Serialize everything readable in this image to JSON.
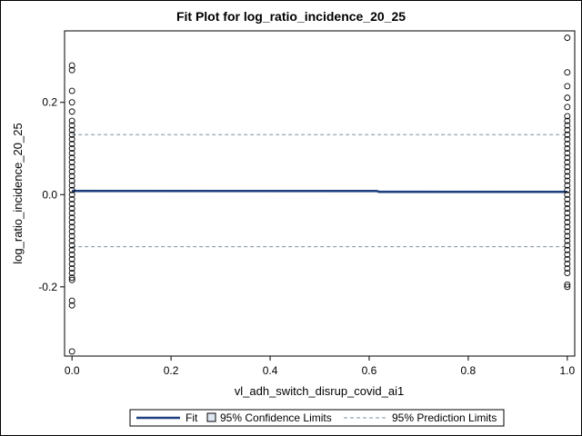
{
  "chart_data": {
    "type": "scatter",
    "title": "Fit Plot for log_ratio_incidence_20_25",
    "xlabel": "vl_adh_switch_disrup_covid_ai1",
    "ylabel": "log_ratio_incidence_20_25",
    "xlim": [
      -0.015,
      1.015
    ],
    "ylim": [
      -0.35,
      0.355
    ],
    "x_ticks": [
      0.0,
      0.2,
      0.4,
      0.6,
      0.8,
      1.0
    ],
    "x_tick_labels": [
      "0.0",
      "0.2",
      "0.4",
      "0.6",
      "0.8",
      "1.0"
    ],
    "y_ticks": [
      -0.2,
      0.0,
      0.2
    ],
    "y_tick_labels": [
      "-0.2",
      "0.0",
      "0.2"
    ],
    "grid": false,
    "legend_position": "bottom",
    "series": [
      {
        "name": "Fit",
        "kind": "line",
        "color": "#1f3f7f",
        "x": [
          0.0,
          0.615,
          0.62,
          1.0
        ],
        "y": [
          0.008,
          0.008,
          0.006,
          0.006
        ]
      },
      {
        "name": "95% Confidence Limits",
        "kind": "band",
        "color": "#b8c8e0",
        "x": [
          0.0,
          1.0
        ],
        "lower": [
          0.005,
          0.004
        ],
        "upper": [
          0.011,
          0.009
        ]
      },
      {
        "name": "95% Prediction Limits",
        "kind": "dashed",
        "color": "#7f8f9f",
        "x": [
          0.0,
          1.0
        ],
        "lower": [
          -0.113,
          -0.113
        ],
        "upper": [
          0.13,
          0.13
        ]
      }
    ],
    "scatter_points": [
      {
        "x": 0,
        "y": -0.34
      },
      {
        "x": 0,
        "y": -0.24
      },
      {
        "x": 0,
        "y": -0.23
      },
      {
        "x": 0,
        "y": -0.185
      },
      {
        "x": 0,
        "y": -0.18
      },
      {
        "x": 0,
        "y": -0.17
      },
      {
        "x": 0,
        "y": -0.16
      },
      {
        "x": 0,
        "y": -0.15
      },
      {
        "x": 0,
        "y": -0.14
      },
      {
        "x": 0,
        "y": -0.13
      },
      {
        "x": 0,
        "y": -0.12
      },
      {
        "x": 0,
        "y": -0.11
      },
      {
        "x": 0,
        "y": -0.1
      },
      {
        "x": 0,
        "y": -0.09
      },
      {
        "x": 0,
        "y": -0.08
      },
      {
        "x": 0,
        "y": -0.07
      },
      {
        "x": 0,
        "y": -0.06
      },
      {
        "x": 0,
        "y": -0.05
      },
      {
        "x": 0,
        "y": -0.04
      },
      {
        "x": 0,
        "y": -0.03
      },
      {
        "x": 0,
        "y": -0.02
      },
      {
        "x": 0,
        "y": -0.01
      },
      {
        "x": 0,
        "y": 0.0
      },
      {
        "x": 0,
        "y": 0.01
      },
      {
        "x": 0,
        "y": 0.02
      },
      {
        "x": 0,
        "y": 0.03
      },
      {
        "x": 0,
        "y": 0.04
      },
      {
        "x": 0,
        "y": 0.05
      },
      {
        "x": 0,
        "y": 0.06
      },
      {
        "x": 0,
        "y": 0.07
      },
      {
        "x": 0,
        "y": 0.08
      },
      {
        "x": 0,
        "y": 0.09
      },
      {
        "x": 0,
        "y": 0.1
      },
      {
        "x": 0,
        "y": 0.11
      },
      {
        "x": 0,
        "y": 0.12
      },
      {
        "x": 0,
        "y": 0.13
      },
      {
        "x": 0,
        "y": 0.14
      },
      {
        "x": 0,
        "y": 0.15
      },
      {
        "x": 0,
        "y": 0.16
      },
      {
        "x": 0,
        "y": 0.18
      },
      {
        "x": 0,
        "y": 0.2
      },
      {
        "x": 0,
        "y": 0.225
      },
      {
        "x": 0,
        "y": 0.27
      },
      {
        "x": 0,
        "y": 0.28
      },
      {
        "x": 1,
        "y": -0.2
      },
      {
        "x": 1,
        "y": -0.195
      },
      {
        "x": 1,
        "y": -0.17
      },
      {
        "x": 1,
        "y": -0.16
      },
      {
        "x": 1,
        "y": -0.15
      },
      {
        "x": 1,
        "y": -0.14
      },
      {
        "x": 1,
        "y": -0.13
      },
      {
        "x": 1,
        "y": -0.12
      },
      {
        "x": 1,
        "y": -0.11
      },
      {
        "x": 1,
        "y": -0.1
      },
      {
        "x": 1,
        "y": -0.09
      },
      {
        "x": 1,
        "y": -0.08
      },
      {
        "x": 1,
        "y": -0.07
      },
      {
        "x": 1,
        "y": -0.06
      },
      {
        "x": 1,
        "y": -0.05
      },
      {
        "x": 1,
        "y": -0.04
      },
      {
        "x": 1,
        "y": -0.03
      },
      {
        "x": 1,
        "y": -0.02
      },
      {
        "x": 1,
        "y": -0.01
      },
      {
        "x": 1,
        "y": 0.0
      },
      {
        "x": 1,
        "y": 0.01
      },
      {
        "x": 1,
        "y": 0.02
      },
      {
        "x": 1,
        "y": 0.03
      },
      {
        "x": 1,
        "y": 0.04
      },
      {
        "x": 1,
        "y": 0.05
      },
      {
        "x": 1,
        "y": 0.06
      },
      {
        "x": 1,
        "y": 0.07
      },
      {
        "x": 1,
        "y": 0.08
      },
      {
        "x": 1,
        "y": 0.09
      },
      {
        "x": 1,
        "y": 0.1
      },
      {
        "x": 1,
        "y": 0.11
      },
      {
        "x": 1,
        "y": 0.12
      },
      {
        "x": 1,
        "y": 0.13
      },
      {
        "x": 1,
        "y": 0.14
      },
      {
        "x": 1,
        "y": 0.15
      },
      {
        "x": 1,
        "y": 0.16
      },
      {
        "x": 1,
        "y": 0.17
      },
      {
        "x": 1,
        "y": 0.19
      },
      {
        "x": 1,
        "y": 0.21
      },
      {
        "x": 1,
        "y": 0.235
      },
      {
        "x": 1,
        "y": 0.265
      },
      {
        "x": 1,
        "y": 0.34
      }
    ]
  },
  "legend": {
    "fit_label": "Fit",
    "ci_label": "95% Confidence Limits",
    "pi_label": "95% Prediction Limits"
  }
}
